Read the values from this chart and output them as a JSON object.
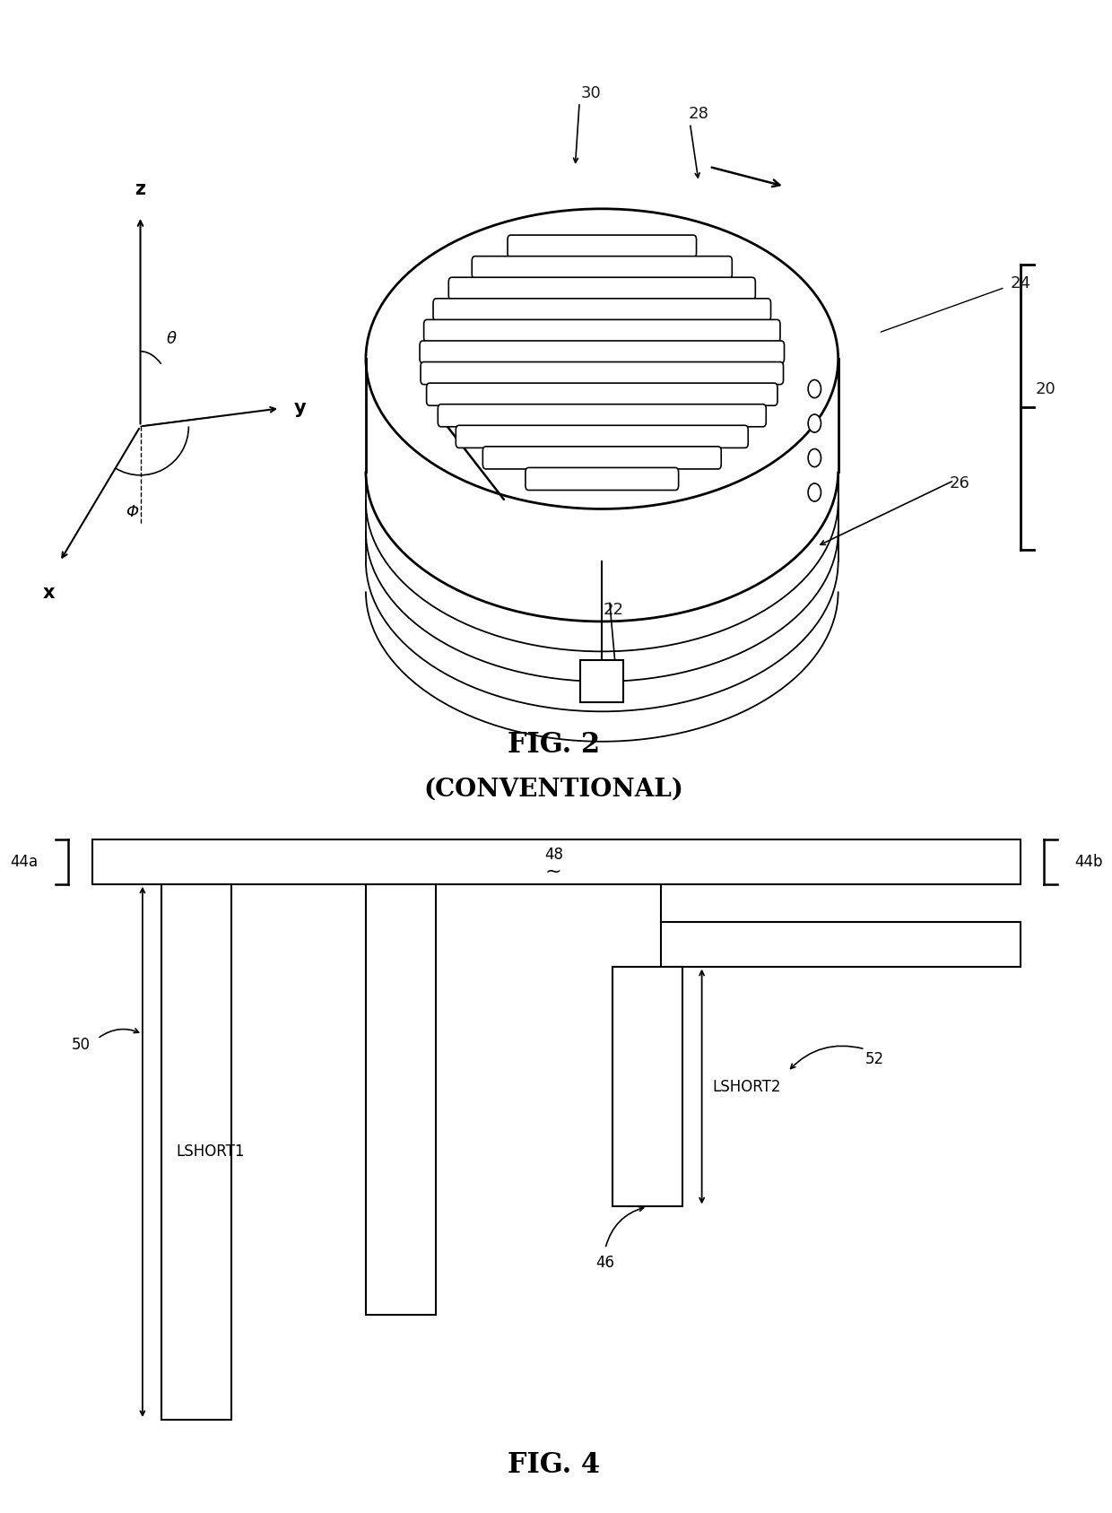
{
  "fig2_title": "FIG. 2",
  "fig2_subtitle": "(CONVENTIONAL)",
  "fig4_title": "FIG. 4",
  "bg_color": "#ffffff",
  "line_color": "#000000",
  "label_color": "#1a1a1a",
  "font_size_labels": 13,
  "font_size_fig_title": 22,
  "font_size_numbers": 12
}
